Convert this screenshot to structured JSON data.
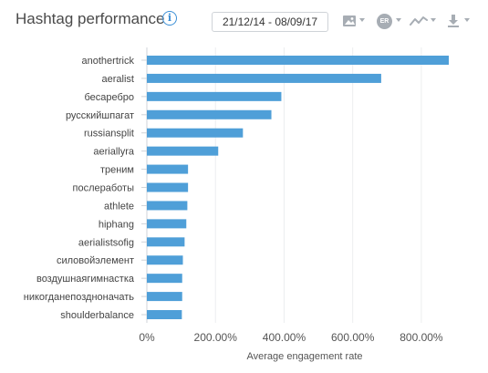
{
  "header": {
    "title": "Hashtag performance",
    "info_icon": "i",
    "date_range": "21/12/14 - 08/09/17",
    "er_badge": "ER",
    "icons": [
      "image-icon",
      "er-badge-icon",
      "trend-line-icon",
      "download-icon"
    ]
  },
  "colors": {
    "bar": "#4f9fd8",
    "axis": "#cfd3d8",
    "accent": "#3b8fd6"
  },
  "chart_data": {
    "type": "bar",
    "orientation": "horizontal",
    "categories": [
      "anothertrick",
      "aeralist",
      "бесаребро",
      "русскийшпагат",
      "russiansplit",
      "aeriallyra",
      "треним",
      "послеработы",
      "athlete",
      "hiphang",
      "aerialistsofig",
      "силовойэлемент",
      "воздушнаягимнастка",
      "никогданепоздноначать",
      "shoulderbalance"
    ],
    "values": [
      880,
      683,
      392,
      363,
      280,
      208,
      120,
      120,
      118,
      115,
      110,
      105,
      103,
      103,
      102
    ],
    "value_unit": "%",
    "xlabel": "Average engagement rate",
    "ylabel": "",
    "xlim": [
      0,
      880
    ],
    "xticks": [
      0,
      200,
      400,
      600,
      800
    ],
    "xtick_labels": [
      "0%",
      "200.00%",
      "400.00%",
      "600.00%",
      "800.00%"
    ],
    "grid": true,
    "legend": "none"
  }
}
